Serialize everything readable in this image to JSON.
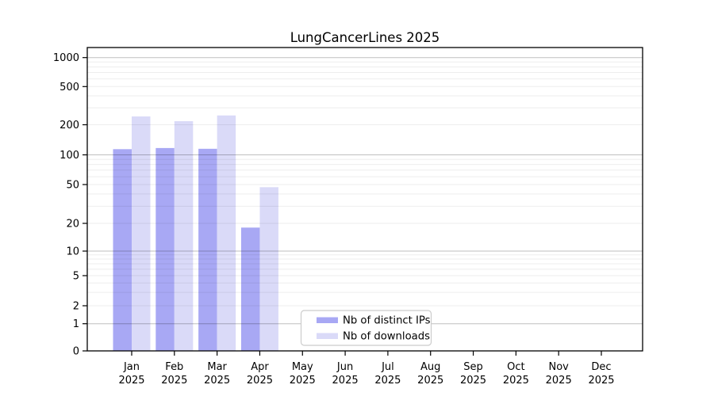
{
  "chart_data": {
    "type": "bar",
    "title": "LungCancerLines 2025",
    "categories": [
      "Jan 2025",
      "Feb 2025",
      "Mar 2025",
      "Apr 2025",
      "May 2025",
      "Jun 2025",
      "Jul 2025",
      "Aug 2025",
      "Sep 2025",
      "Oct 2025",
      "Nov 2025",
      "Dec 2025"
    ],
    "series": [
      {
        "name": "Nb of distinct IPs",
        "color": "#a8a8f4",
        "values": [
          114,
          117,
          115,
          18,
          null,
          null,
          null,
          null,
          null,
          null,
          null,
          null
        ]
      },
      {
        "name": "Nb of downloads",
        "color": "#dadaf8",
        "values": [
          244,
          218,
          250,
          47,
          null,
          null,
          null,
          null,
          null,
          null,
          null,
          null
        ]
      }
    ],
    "yscale": "symlog",
    "yticks": [
      0,
      1,
      2,
      5,
      10,
      20,
      50,
      100,
      200,
      500,
      1000
    ],
    "ylim": [
      0,
      1300
    ],
    "xlabel": "",
    "ylabel": "",
    "grid": "both",
    "legend_position": "lower-center-inside",
    "colors": {
      "axis": "#000000",
      "major_grid": "rgba(0,0,0,0.25)",
      "minor_grid": "rgba(0,0,0,0.07)",
      "legend_border": "#cccccc",
      "legend_bg": "#ffffff"
    }
  }
}
